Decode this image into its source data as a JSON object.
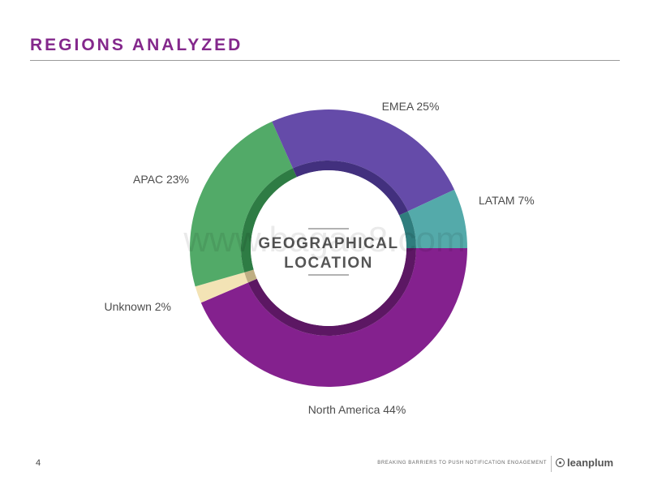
{
  "header": {
    "title": "REGIONS ANALYZED"
  },
  "chart_data": {
    "type": "pie",
    "categories": [
      "North America",
      "Unknown",
      "APAC",
      "EMEA",
      "LATAM"
    ],
    "values": [
      44,
      2,
      23,
      25,
      7
    ],
    "labels": [
      "North America 44%",
      "Unknown 2%",
      "APAC 23%",
      "EMEA 25%",
      "LATAM 7%"
    ],
    "colors": [
      "#84218e",
      "#f3e3b5",
      "#52aa68",
      "#654ba9",
      "#54aaaa"
    ],
    "inner_colors": [
      "#5c1763",
      "#bfae83",
      "#2e7c44",
      "#42307e",
      "#2f7d7d"
    ],
    "center_label": [
      "GEOGRAPHICAL",
      "LOCATION"
    ]
  },
  "watermark": "www.bagao8.com",
  "footer": {
    "page_number": "4",
    "tagline": "BREAKING BARRIERS TO PUSH NOTIFICATION ENGAGEMENT",
    "brand": "leanplum"
  }
}
